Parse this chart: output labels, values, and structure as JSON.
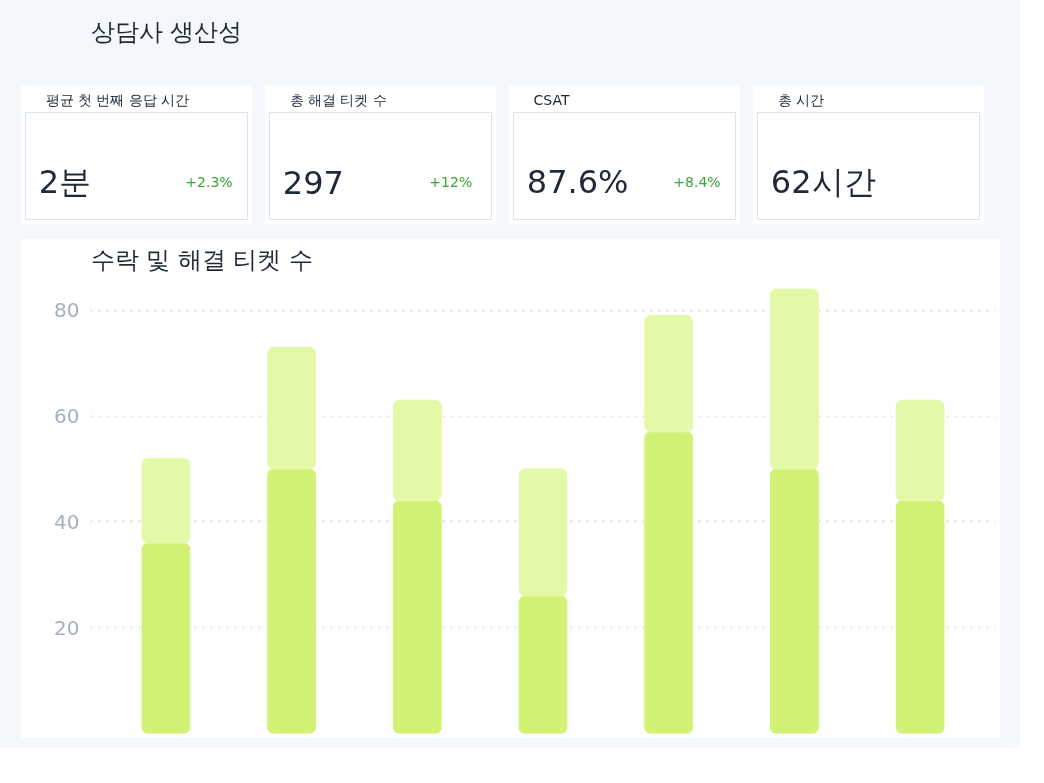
{
  "chart_data": [
    {
      "type": "other",
      "title": "상담사 생산성"
    },
    {
      "type": "other",
      "title": "평균 첫 번째 응답 시간",
      "annotations": [
        "2분",
        "+2.3%"
      ]
    },
    {
      "type": "other",
      "title": "총 해결 티켓 수",
      "annotations": [
        "297",
        "+12%"
      ]
    },
    {
      "type": "other",
      "title": "CSAT",
      "annotations": [
        "87.6%",
        "+8.4%"
      ]
    },
    {
      "type": "other",
      "title": "총 시간",
      "annotations": [
        "62시간"
      ]
    },
    {
      "type": "bar",
      "title": "수락 및 해결 티켓 수",
      "categories": [
        null,
        null,
        null,
        null,
        null,
        null,
        null
      ],
      "series": [
        {
          "color": "#d1f274",
          "values": [
            36,
            50,
            44,
            26,
            57,
            50,
            44
          ]
        },
        {
          "color": "#e4f9a8",
          "values": [
            16,
            23,
            19,
            24,
            22,
            34,
            19
          ]
        }
      ],
      "stacked": true,
      "ylim": [
        0,
        86
      ],
      "yticks": [
        20,
        40,
        60,
        80
      ],
      "grid": "y",
      "tick_labels": "y"
    }
  ]
}
